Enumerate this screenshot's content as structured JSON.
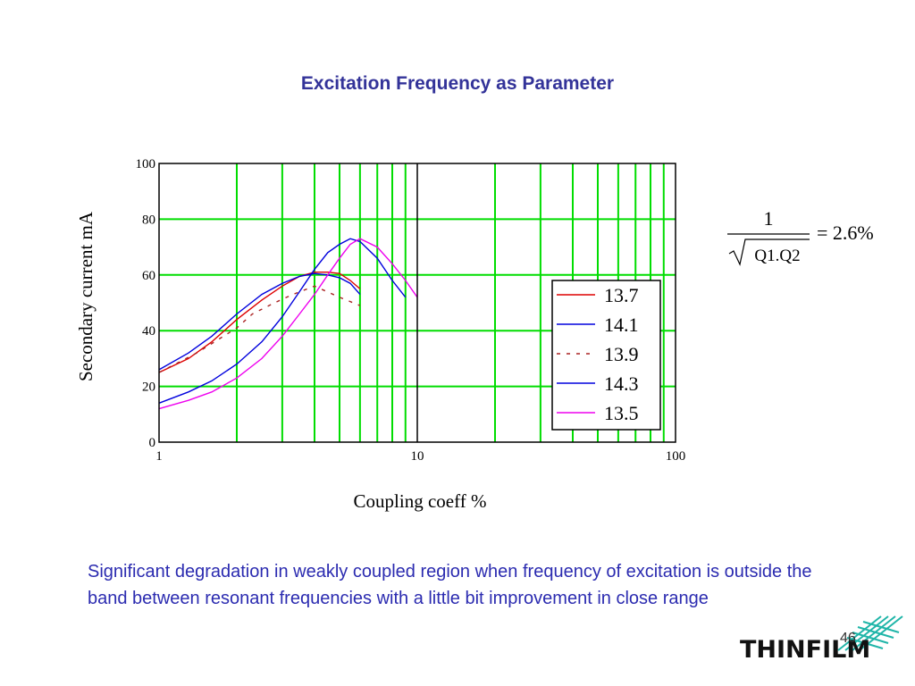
{
  "slide": {
    "title": "Excitation Frequency as Parameter",
    "body_text": "Significant degradation in weakly coupled region when frequency of excitation is outside the band between resonant frequencies with a little bit improvement in close range",
    "page_number": "46",
    "logo_text": "THINFILM",
    "colors": {
      "title": "#333399",
      "body": "#2b2bb0",
      "grid": "#00dd00",
      "logo_mesh": "#1fb5a8"
    }
  },
  "formula": {
    "numerator": "1",
    "denominator": "Q1.Q2",
    "rhs": "= 2.6%"
  },
  "chart_data": {
    "type": "line",
    "title": "",
    "xlabel": "Coupling coeff %",
    "ylabel": "Secondary current mA",
    "x_scale": "log",
    "xlim": [
      1,
      100
    ],
    "ylim": [
      0,
      100
    ],
    "x_ticks": [
      "1",
      "10",
      "100"
    ],
    "y_ticks": [
      "0",
      "20",
      "40",
      "60",
      "80",
      "100"
    ],
    "grid": true,
    "legend_position": "bottom-right",
    "series": [
      {
        "name": "13.7",
        "color": "#dd0000",
        "dash": "solid",
        "x": [
          1,
          1.3,
          1.6,
          2,
          2.5,
          3,
          3.5,
          4,
          4.5,
          5,
          5.5,
          6
        ],
        "y": [
          25,
          30,
          36,
          44,
          51,
          56,
          59.5,
          61,
          61,
          60.5,
          58,
          55
        ]
      },
      {
        "name": "14.1",
        "color": "#0000dd",
        "dash": "solid",
        "x": [
          1,
          1.3,
          1.6,
          2,
          2.5,
          3,
          3.5,
          4,
          4.5,
          5,
          5.5,
          6
        ],
        "y": [
          26,
          32,
          38,
          46,
          53,
          57,
          59.5,
          60.5,
          60,
          59,
          57,
          53
        ]
      },
      {
        "name": "13.9",
        "color": "#aa2222",
        "dash": "dotted",
        "x": [
          1,
          1.4,
          2,
          2.3,
          2.8,
          3.3,
          4,
          5,
          6
        ],
        "y": [
          25,
          32,
          41,
          46,
          50,
          53,
          56,
          52,
          49
        ]
      },
      {
        "name": "14.3",
        "color": "#0000dd",
        "dash": "solid",
        "x": [
          1,
          1.3,
          1.6,
          2,
          2.5,
          3,
          3.5,
          4,
          4.5,
          5,
          5.5,
          6,
          7,
          8,
          9
        ],
        "y": [
          14,
          18,
          22,
          28,
          36,
          45,
          54,
          62,
          68,
          71,
          73,
          72,
          66,
          58,
          52
        ]
      },
      {
        "name": "13.5",
        "color": "#ee00ee",
        "dash": "solid",
        "x": [
          1,
          1.3,
          1.6,
          2,
          2.5,
          3,
          3.5,
          4,
          4.5,
          5,
          5.5,
          6,
          7,
          8,
          9,
          10
        ],
        "y": [
          12,
          15,
          18,
          23,
          30,
          38,
          46,
          53,
          60,
          66,
          71,
          73,
          70,
          64,
          58,
          52
        ]
      }
    ]
  }
}
